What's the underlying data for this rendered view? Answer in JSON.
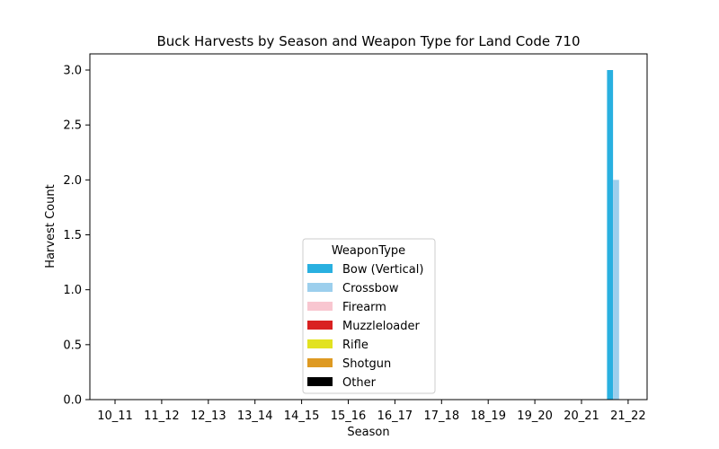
{
  "chart_data": {
    "type": "bar",
    "title": "Buck Harvests by Season and Weapon Type for Land Code 710",
    "xlabel": "Season",
    "ylabel": "Harvest Count",
    "categories": [
      "10_11",
      "11_12",
      "12_13",
      "13_14",
      "14_15",
      "15_16",
      "16_17",
      "17_18",
      "18_19",
      "19_20",
      "20_21",
      "21_22"
    ],
    "ylim": [
      0,
      3.0
    ],
    "yticks": [
      "0.0",
      "0.5",
      "1.0",
      "1.5",
      "2.0",
      "2.5",
      "3.0"
    ],
    "grid": false,
    "legend": {
      "title": "WeaponType",
      "placement": "lower-center"
    },
    "series": [
      {
        "name": "Bow (Vertical)",
        "color": "#29b0e0",
        "values": [
          0,
          0,
          0,
          0,
          0,
          0,
          0,
          0,
          0,
          0,
          0,
          3
        ]
      },
      {
        "name": "Crossbow",
        "color": "#9ccfed",
        "values": [
          0,
          0,
          0,
          0,
          0,
          0,
          0,
          0,
          0,
          0,
          0,
          2
        ]
      },
      {
        "name": "Firearm",
        "color": "#f8c6d0",
        "values": [
          0,
          0,
          0,
          0,
          0,
          0,
          0,
          0,
          0,
          0,
          0,
          0
        ]
      },
      {
        "name": "Muzzleloader",
        "color": "#d92121",
        "values": [
          0,
          0,
          0,
          0,
          0,
          0,
          0,
          0,
          0,
          0,
          0,
          0
        ]
      },
      {
        "name": "Rifle",
        "color": "#e2e221",
        "values": [
          0,
          0,
          0,
          0,
          0,
          0,
          0,
          0,
          0,
          0,
          0,
          0
        ]
      },
      {
        "name": "Shotgun",
        "color": "#de9a22",
        "values": [
          0,
          0,
          0,
          0,
          0,
          0,
          0,
          0,
          0,
          0,
          0,
          0
        ]
      },
      {
        "name": "Other",
        "color": "#000000",
        "values": [
          0,
          0,
          0,
          0,
          0,
          0,
          0,
          0,
          0,
          0,
          0,
          0
        ]
      }
    ]
  }
}
